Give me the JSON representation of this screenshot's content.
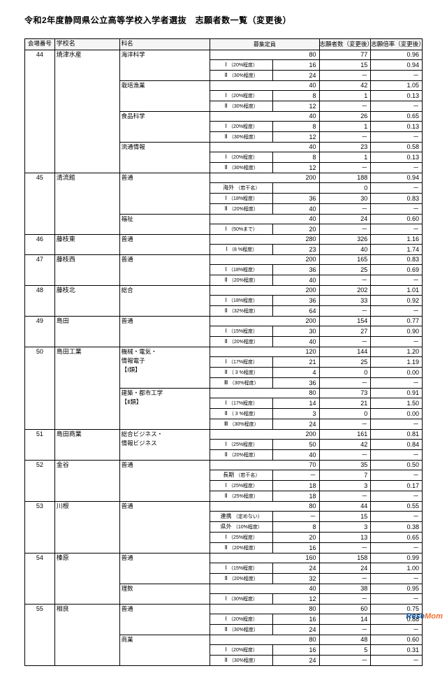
{
  "title": "令和2年度静岡県公立高等学校入学者選抜　志願者数一覧（変更後）",
  "watermark_left": "Rese",
  "watermark_right": "Mom",
  "header": {
    "venue": "会場番号",
    "school": "学校名",
    "subject": "科名",
    "capacity": "募集定員",
    "applicants": "志願者数（変更後）",
    "rate": "志願倍率（変更後）"
  },
  "rows": [
    {
      "v": "44",
      "sch": "焼津水産",
      "subj": "海洋科学",
      "slot": "",
      "note": "",
      "cap": "80",
      "app": "77",
      "rate": "0.96",
      "bv": true,
      "bs": true,
      "bj": true
    },
    {
      "slot": "Ⅰ",
      "note": "（20%程度）",
      "cap": "16",
      "app": "15",
      "rate": "0.94"
    },
    {
      "slot": "Ⅱ",
      "note": "（30%程度）",
      "cap": "24",
      "app": "－",
      "rate": "－"
    },
    {
      "subj": "栽培漁業",
      "slot": "",
      "note": "",
      "cap": "40",
      "app": "42",
      "rate": "1.05",
      "bj": true
    },
    {
      "slot": "Ⅰ",
      "note": "（20%程度）",
      "cap": "8",
      "app": "1",
      "rate": "0.13"
    },
    {
      "slot": "Ⅱ",
      "note": "（30%程度）",
      "cap": "12",
      "app": "－",
      "rate": "－"
    },
    {
      "subj": "食品科学",
      "slot": "",
      "note": "",
      "cap": "40",
      "app": "26",
      "rate": "0.65",
      "bj": true
    },
    {
      "slot": "Ⅰ",
      "note": "（20%程度）",
      "cap": "8",
      "app": "1",
      "rate": "0.13"
    },
    {
      "slot": "Ⅱ",
      "note": "（30%程度）",
      "cap": "12",
      "app": "－",
      "rate": "－"
    },
    {
      "subj": "流通情報",
      "slot": "",
      "note": "",
      "cap": "40",
      "app": "23",
      "rate": "0.58",
      "bj": true
    },
    {
      "slot": "Ⅰ",
      "note": "（20%程度）",
      "cap": "8",
      "app": "1",
      "rate": "0.13"
    },
    {
      "slot": "Ⅱ",
      "note": "（30%程度）",
      "cap": "12",
      "app": "－",
      "rate": "－"
    },
    {
      "v": "45",
      "sch": "清流館",
      "subj": "普通",
      "slot": "",
      "note": "",
      "cap": "200",
      "app": "188",
      "rate": "0.94",
      "bv": true,
      "bs": true,
      "bj": true
    },
    {
      "slot": "海外",
      "note": "（若干名）",
      "cap": "",
      "app": "0",
      "rate": "－"
    },
    {
      "slot": "Ⅰ",
      "note": "（18%程度）",
      "cap": "36",
      "app": "30",
      "rate": "0.83"
    },
    {
      "slot": "Ⅱ",
      "note": "（20%程度）",
      "cap": "40",
      "app": "－",
      "rate": "－"
    },
    {
      "subj": "福祉",
      "slot": "",
      "note": "",
      "cap": "40",
      "app": "24",
      "rate": "0.60",
      "bj": true
    },
    {
      "slot": "Ⅰ",
      "note": "（50%まで）",
      "cap": "20",
      "app": "－",
      "rate": "－"
    },
    {
      "v": "46",
      "sch": "藤枝東",
      "subj": "普通",
      "slot": "",
      "note": "",
      "cap": "280",
      "app": "326",
      "rate": "1.16",
      "bv": true,
      "bs": true,
      "bj": true
    },
    {
      "slot": "Ⅰ",
      "note": "（8 %程度）",
      "cap": "23",
      "app": "40",
      "rate": "1.74"
    },
    {
      "v": "47",
      "sch": "藤枝西",
      "subj": "普通",
      "slot": "",
      "note": "",
      "cap": "200",
      "app": "165",
      "rate": "0.83",
      "bv": true,
      "bs": true,
      "bj": true
    },
    {
      "slot": "Ⅰ",
      "note": "（18%程度）",
      "cap": "36",
      "app": "25",
      "rate": "0.69"
    },
    {
      "slot": "Ⅱ",
      "note": "（20%程度）",
      "cap": "40",
      "app": "－",
      "rate": "－"
    },
    {
      "v": "48",
      "sch": "藤枝北",
      "subj": "総合",
      "slot": "",
      "note": "",
      "cap": "200",
      "app": "202",
      "rate": "1.01",
      "bv": true,
      "bs": true,
      "bj": true
    },
    {
      "slot": "Ⅰ",
      "note": "（18%程度）",
      "cap": "36",
      "app": "33",
      "rate": "0.92"
    },
    {
      "slot": "Ⅱ",
      "note": "（32%程度）",
      "cap": "64",
      "app": "－",
      "rate": "－"
    },
    {
      "v": "49",
      "sch": "島田",
      "subj": "普通",
      "slot": "",
      "note": "",
      "cap": "200",
      "app": "154",
      "rate": "0.77",
      "bv": true,
      "bs": true,
      "bj": true
    },
    {
      "slot": "Ⅰ",
      "note": "（15%程度）",
      "cap": "30",
      "app": "27",
      "rate": "0.90"
    },
    {
      "slot": "Ⅱ",
      "note": "（20%程度）",
      "cap": "40",
      "app": "－",
      "rate": "－"
    },
    {
      "v": "50",
      "sch": "島田工業",
      "subj": "機械・電気・",
      "slot": "",
      "note": "",
      "cap": "120",
      "app": "144",
      "rate": "1.20",
      "bv": true,
      "bs": true,
      "bj": true
    },
    {
      "subj": "情報電子",
      "slot": "Ⅰ",
      "note": "（17%程度）",
      "cap": "21",
      "app": "25",
      "rate": "1.19"
    },
    {
      "subj": "【Ⅰ類】",
      "slot": "Ⅱ",
      "note": "（ 3 %程度）",
      "cap": "4",
      "app": "0",
      "rate": "0.00"
    },
    {
      "slot": "Ⅲ",
      "note": "（30%程度）",
      "cap": "36",
      "app": "－",
      "rate": "－"
    },
    {
      "subj": "建築・都市工学",
      "slot": "",
      "note": "",
      "cap": "80",
      "app": "73",
      "rate": "0.91",
      "bj": true
    },
    {
      "subj": "【Ⅱ類】",
      "slot": "Ⅰ",
      "note": "（17%程度）",
      "cap": "14",
      "app": "21",
      "rate": "1.50"
    },
    {
      "slot": "Ⅱ",
      "note": "（ 3 %程度）",
      "cap": "3",
      "app": "0",
      "rate": "0.00"
    },
    {
      "slot": "Ⅲ",
      "note": "（30%程度）",
      "cap": "24",
      "app": "－",
      "rate": "－"
    },
    {
      "v": "51",
      "sch": "島田商業",
      "subj": "総合ビジネス・",
      "slot": "",
      "note": "",
      "cap": "200",
      "app": "161",
      "rate": "0.81",
      "bv": true,
      "bs": true,
      "bj": true
    },
    {
      "subj": "情報ビジネス",
      "slot": "Ⅰ",
      "note": "（25%程度）",
      "cap": "50",
      "app": "42",
      "rate": "0.84"
    },
    {
      "slot": "Ⅱ",
      "note": "（20%程度）",
      "cap": "40",
      "app": "－",
      "rate": "－"
    },
    {
      "v": "52",
      "sch": "金谷",
      "subj": "普通",
      "slot": "",
      "note": "",
      "cap": "70",
      "app": "35",
      "rate": "0.50",
      "bv": true,
      "bs": true,
      "bj": true
    },
    {
      "slot": "長期",
      "note": "（若干名）",
      "cap": "－",
      "app": "7",
      "rate": "－"
    },
    {
      "slot": "Ⅰ",
      "note": "（25%程度）",
      "cap": "18",
      "app": "3",
      "rate": "0.17"
    },
    {
      "slot": "Ⅱ",
      "note": "（25%程度）",
      "cap": "18",
      "app": "－",
      "rate": "－"
    },
    {
      "v": "53",
      "sch": "川根",
      "subj": "普通",
      "slot": "",
      "note": "",
      "cap": "80",
      "app": "44",
      "rate": "0.55",
      "bv": true,
      "bs": true,
      "bj": true
    },
    {
      "slot": "連携",
      "note": "（定めない）",
      "cap": "－",
      "app": "15",
      "rate": "－"
    },
    {
      "slot": "県外",
      "note": "（10%程度）",
      "cap": "8",
      "app": "3",
      "rate": "0.38"
    },
    {
      "slot": "Ⅰ",
      "note": "（25%程度）",
      "cap": "20",
      "app": "13",
      "rate": "0.65"
    },
    {
      "slot": "Ⅱ",
      "note": "（20%程度）",
      "cap": "16",
      "app": "－",
      "rate": "－"
    },
    {
      "v": "54",
      "sch": "榛原",
      "subj": "普通",
      "slot": "",
      "note": "",
      "cap": "160",
      "app": "158",
      "rate": "0.99",
      "bv": true,
      "bs": true,
      "bj": true
    },
    {
      "slot": "Ⅰ",
      "note": "（15%程度）",
      "cap": "24",
      "app": "24",
      "rate": "1.00"
    },
    {
      "slot": "Ⅱ",
      "note": "（20%程度）",
      "cap": "32",
      "app": "－",
      "rate": "－"
    },
    {
      "subj": "理数",
      "slot": "",
      "note": "",
      "cap": "40",
      "app": "38",
      "rate": "0.95",
      "bj": true
    },
    {
      "slot": "Ⅰ",
      "note": "（30%程度）",
      "cap": "12",
      "app": "－",
      "rate": "－"
    },
    {
      "v": "55",
      "sch": "相良",
      "subj": "普通",
      "slot": "",
      "note": "",
      "cap": "80",
      "app": "60",
      "rate": "0.75",
      "bv": true,
      "bs": true,
      "bj": true
    },
    {
      "slot": "Ⅰ",
      "note": "（20%程度）",
      "cap": "16",
      "app": "14",
      "rate": "0.88"
    },
    {
      "slot": "Ⅱ",
      "note": "（30%程度）",
      "cap": "24",
      "app": "－",
      "rate": "－"
    },
    {
      "subj": "商業",
      "slot": "",
      "note": "",
      "cap": "80",
      "app": "48",
      "rate": "0.60",
      "bj": true
    },
    {
      "slot": "Ⅰ",
      "note": "（20%程度）",
      "cap": "16",
      "app": "5",
      "rate": "0.31"
    },
    {
      "slot": "Ⅱ",
      "note": "（30%程度）",
      "cap": "24",
      "app": "－",
      "rate": "－"
    }
  ]
}
